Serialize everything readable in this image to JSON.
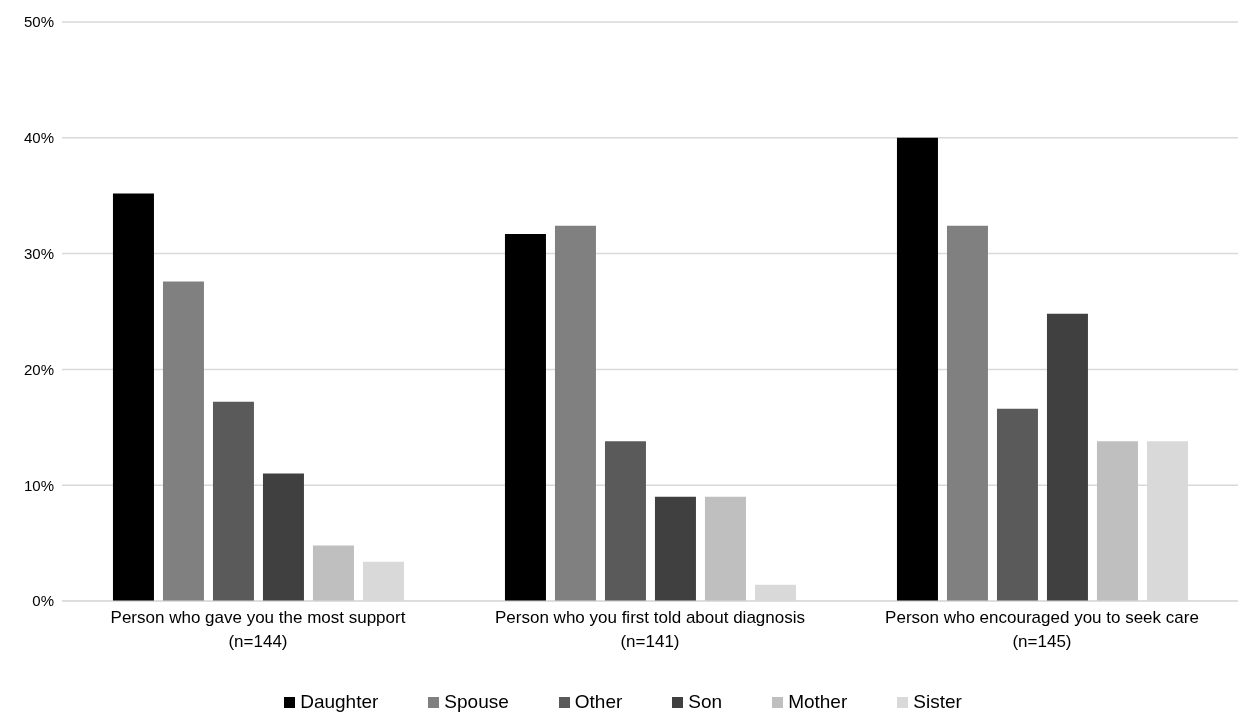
{
  "chart_data": {
    "type": "bar",
    "categories": [
      "Person who gave you the most support\n(n=144)",
      "Person who you first told about diagnosis\n(n=141)",
      "Person who encouraged you to seek care\n(n=145)"
    ],
    "series": [
      {
        "name": "Daughter",
        "color": "#000000",
        "values": [
          35.2,
          31.7,
          40.0
        ]
      },
      {
        "name": "Spouse",
        "color": "#808080",
        "values": [
          27.6,
          32.4,
          32.4
        ]
      },
      {
        "name": "Other",
        "color": "#5a5a5a",
        "values": [
          17.2,
          13.8,
          16.6
        ]
      },
      {
        "name": "Son",
        "color": "#404040",
        "values": [
          11.0,
          9.0,
          24.8
        ]
      },
      {
        "name": "Mother",
        "color": "#bfbfbf",
        "values": [
          4.8,
          9.0,
          13.8
        ]
      },
      {
        "name": "Sister",
        "color": "#d9d9d9",
        "values": [
          3.4,
          1.4,
          13.8
        ]
      }
    ],
    "ylim": [
      0,
      50
    ],
    "yticks": [
      {
        "value": 0,
        "label": "0%"
      },
      {
        "value": 10,
        "label": "10%"
      },
      {
        "value": 20,
        "label": "20%"
      },
      {
        "value": 30,
        "label": "30%"
      },
      {
        "value": 40,
        "label": "40%"
      },
      {
        "value": 50,
        "label": "50%"
      }
    ],
    "grid": "y",
    "legend": "bottom"
  }
}
